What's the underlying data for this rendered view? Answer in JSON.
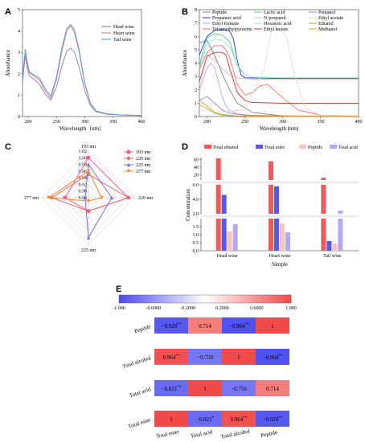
{
  "panels": {
    "A": {
      "letter": "A",
      "chart_data": {
        "type": "line",
        "xlabel": "Wavelength（nm）",
        "ylabel": "Absorbance",
        "xlim": [
          190,
          400
        ],
        "ylim": [
          0,
          5
        ],
        "xticks": [
          "200",
          "250",
          "300",
          "350",
          "400"
        ],
        "yticks": [
          "0",
          "1",
          "2",
          "3",
          "4",
          "5"
        ],
        "legend_position": "top-right",
        "series": [
          {
            "name": "Head wine",
            "color": "#9a82b8",
            "x": [
              190,
              195,
              198,
              202,
              210,
              220,
              230,
              240,
              250,
              260,
              268,
              275,
              282,
              290,
              300,
              310,
              320,
              340,
              360,
              380,
              400
            ],
            "y": [
              1.6,
              2.85,
              2.3,
              1.9,
              1.75,
              1.5,
              1.05,
              0.75,
              1.4,
              2.4,
              3.05,
              3.2,
              3.0,
              2.3,
              1.2,
              0.5,
              0.22,
              0.1,
              0.08,
              0.06,
              0.05
            ]
          },
          {
            "name": "Heart wine",
            "color": "#e0868a",
            "x": [
              190,
              195,
              198,
              202,
              210,
              220,
              230,
              240,
              250,
              260,
              268,
              275,
              282,
              290,
              300,
              310,
              320,
              340,
              360,
              380,
              400
            ],
            "y": [
              1.75,
              3.05,
              2.5,
              2.05,
              1.9,
              1.7,
              1.2,
              0.85,
              1.75,
              3.1,
              4.0,
              4.25,
              3.9,
              3.0,
              1.5,
              0.6,
              0.25,
              0.12,
              0.08,
              0.06,
              0.05
            ]
          },
          {
            "name": "Tail wine",
            "color": "#5f9ed1",
            "x": [
              190,
              195,
              198,
              202,
              210,
              220,
              230,
              240,
              250,
              260,
              268,
              275,
              282,
              290,
              300,
              310,
              320,
              340,
              360,
              380,
              400
            ],
            "y": [
              1.8,
              3.15,
              2.6,
              2.1,
              1.95,
              1.8,
              1.3,
              0.95,
              1.85,
              3.25,
              4.1,
              4.3,
              4.05,
              3.1,
              1.55,
              0.62,
              0.26,
              0.12,
              0.08,
              0.06,
              0.05
            ]
          }
        ]
      }
    },
    "B": {
      "letter": "B",
      "chart_data": {
        "type": "line",
        "xlabel": "Wavelength (nm)",
        "ylabel": "Absorbance",
        "xlim": [
          190,
          400
        ],
        "ylim": [
          0,
          8
        ],
        "xticks": [
          "200",
          "250",
          "300",
          "350",
          "400"
        ],
        "yticks": [
          "0",
          "1",
          "2",
          "3",
          "4",
          "5",
          "6",
          "7",
          "8"
        ],
        "legend_position": "top",
        "series": [
          {
            "name": "Peptide",
            "color": "#7f7f7f",
            "x": [
              190,
              200,
              210,
              220,
              230,
              240,
              260,
              300,
              350,
              400
            ],
            "y": [
              5.5,
              5.7,
              4.6,
              3.2,
              2.0,
              1.0,
              0.3,
              0.05,
              0.02,
              0.02
            ]
          },
          {
            "name": "Propanoic acid",
            "color": "#1f2fd6",
            "x": [
              190,
              200,
              210,
              220,
              230,
              235,
              240,
              245,
              250,
              300,
              350,
              400
            ],
            "y": [
              4.6,
              6.0,
              6.45,
              6.5,
              6.4,
              5.8,
              4.2,
              3.1,
              2.9,
              2.85,
              2.85,
              2.85
            ]
          },
          {
            "name": "Ethyl formate",
            "color": "#c9a0dc",
            "x": [
              190,
              200,
              205,
              210,
              215,
              220,
              225,
              230,
              240,
              260,
              300,
              400
            ],
            "y": [
              2.0,
              3.6,
              4.0,
              3.7,
              2.6,
              1.5,
              0.8,
              0.45,
              0.2,
              0.08,
              0.04,
              0.03
            ]
          },
          {
            "name": "Tetramethylpyrazine",
            "color": "#ff6b6b",
            "x": [
              190,
              200,
              210,
              220,
              225,
              230,
              240,
              250,
              260,
              270,
              280,
              300,
              320,
              350,
              400
            ],
            "y": [
              3.5,
              4.8,
              5.3,
              5.3,
              5.0,
              4.4,
              2.4,
              1.6,
              1.8,
              2.3,
              2.4,
              1.4,
              0.5,
              0.1,
              0.05
            ]
          },
          {
            "name": "Lactic acid",
            "color": "#4cd07a",
            "x": [
              190,
              200,
              210,
              220,
              230,
              240,
              250,
              260,
              300,
              400
            ],
            "y": [
              3.8,
              5.9,
              6.2,
              6.1,
              5.6,
              3.8,
              3.1,
              2.95,
              2.9,
              2.9
            ]
          },
          {
            "name": "N-propanol",
            "color": "#f2b3b3",
            "x": [
              190,
              200,
              210,
              220,
              230,
              240,
              260,
              300,
              400
            ],
            "y": [
              4.2,
              4.6,
              4.2,
              3.6,
              3.1,
              2.9,
              2.8,
              2.8,
              2.8
            ]
          },
          {
            "name": "Hexanoic acid",
            "color": "#8fe3e3",
            "x": [
              190,
              200,
              210,
              220,
              230,
              240,
              250,
              260,
              300,
              400
            ],
            "y": [
              3.6,
              5.4,
              5.8,
              5.7,
              5.2,
              3.9,
              3.1,
              2.95,
              2.9,
              2.9
            ]
          },
          {
            "name": "Ethyl lactate",
            "color": "#d62728",
            "x": [
              190,
              200,
              210,
              220,
              225,
              230,
              240,
              250,
              260,
              300,
              400
            ],
            "y": [
              2.6,
              4.5,
              4.8,
              4.8,
              4.6,
              3.6,
              1.8,
              1.2,
              1.05,
              1.0,
              1.0
            ]
          },
          {
            "name": "Pentanol",
            "color": "#a07de0",
            "x": [
              190,
              200,
              210,
              220,
              230,
              250,
              300,
              400
            ],
            "y": [
              1.2,
              1.5,
              1.0,
              0.5,
              0.25,
              0.1,
              0.05,
              0.03
            ]
          },
          {
            "name": "Ethyl acetate",
            "color": "#dedede",
            "x": [
              190,
              200,
              210,
              250,
              275,
              285,
              295,
              305,
              315,
              330,
              350,
              400
            ],
            "y": [
              0.4,
              0.5,
              0.3,
              0.5,
              3.5,
              6.4,
              6.6,
              6.0,
              3.2,
              0.6,
              0.1,
              0.05
            ]
          },
          {
            "name": "Ethanol",
            "color": "#9bbb2e",
            "x": [
              190,
              200,
              210,
              220,
              240,
              300,
              400
            ],
            "y": [
              1.2,
              0.8,
              0.3,
              0.15,
              0.05,
              0.02,
              0.02
            ]
          },
          {
            "name": "Methanol",
            "color": "#e89a2e",
            "x": [
              190,
              200,
              210,
              220,
              240,
              300,
              400
            ],
            "y": [
              0.9,
              0.6,
              0.25,
              0.1,
              0.05,
              0.02,
              0.02
            ]
          }
        ]
      }
    },
    "C": {
      "letter": "C",
      "chart_data": {
        "type": "radar",
        "axes": [
          "193 nm",
          "220 nm",
          "225 nm",
          "277 nm"
        ],
        "rticks": [
          "0.88",
          "0.90",
          "0.92",
          "0.94",
          "0.96",
          "0.98",
          "1.00",
          "1.02"
        ],
        "rlim": [
          0.88,
          1.02
        ],
        "legend_position": "right",
        "series": [
          {
            "name": "193 nm",
            "color": "#ff5a87",
            "marker": "square",
            "values": [
              1.0,
              1.0,
              0.92,
              0.95
            ]
          },
          {
            "name": "220 nm",
            "color": "#f06a6a",
            "marker": "circle",
            "values": [
              0.95,
              1.0,
              0.92,
              0.99
            ]
          },
          {
            "name": "225 nm",
            "color": "#7b6be8",
            "marker": "triangle",
            "values": [
              0.98,
              0.95,
              1.0,
              0.89
            ]
          },
          {
            "name": "277 nm",
            "color": "#f28c28",
            "marker": "triangle-down",
            "values": [
              0.96,
              0.92,
              0.89,
              1.0
            ]
          }
        ]
      }
    },
    "D": {
      "letter": "D",
      "chart_data": {
        "type": "bar",
        "xlabel": "Simple",
        "ylabel": "Concentration",
        "categories": [
          "Head wine",
          "Heart wine",
          "Tail wine"
        ],
        "legend_position": "top",
        "segments": [
          {
            "range": [
              0,
              2.0
            ],
            "ticks": [
              "0.0",
              "0.5",
              "1.0",
              "1.5"
            ]
          },
          {
            "range": [
              2.0,
              6.0
            ],
            "ticks": [
              "2.0",
              "4.0",
              "6.0"
            ]
          },
          {
            "range": [
              6.0,
              65
            ],
            "ticks": [
              "20",
              "40",
              "60"
            ]
          }
        ],
        "series": [
          {
            "name": "Total ethanol",
            "color": "#f05a5a",
            "values": [
              63,
              55,
              12
            ]
          },
          {
            "name": "Total ester",
            "color": "#5b57e8",
            "values": [
              4.6,
              5.8,
              0.6
            ]
          },
          {
            "name": "Peptide",
            "color": "#f7c4c4",
            "values": [
              1.2,
              1.7,
              0.45
            ]
          },
          {
            "name": "Total acid",
            "color": "#b0aaf2",
            "values": [
              1.65,
              1.15,
              2.45
            ]
          }
        ]
      }
    },
    "E": {
      "letter": "E",
      "chart_data": {
        "type": "heatmap",
        "colorbar_ticks": [
          "-1.000",
          "-0.6000",
          "-0.2000",
          "0.2000",
          "0.6000",
          "1.000"
        ],
        "clim": [
          -1,
          1
        ],
        "color_low": "#4a4af0",
        "color_mid": "#ffffff",
        "color_high": "#f04a4a",
        "row_labels": [
          "Peptide",
          "Total  alcohol",
          "Total acid",
          "Total ester"
        ],
        "col_labels": [
          "Total ester",
          "Total acid",
          "Total alcohol",
          "Peptide"
        ],
        "values": [
          [
            -0.929,
            0.714,
            -0.964,
            1
          ],
          [
            0.964,
            -0.75,
            1,
            -0.964
          ],
          [
            -0.821,
            1,
            -0.75,
            0.714
          ],
          [
            1,
            -0.821,
            0.964,
            -0.929
          ]
        ],
        "cell_text": [
          [
            "−0.929",
            "0.714",
            "−0.964",
            "1"
          ],
          [
            "0.964",
            "−0.750",
            "1",
            "−0.964"
          ],
          [
            "−0.821",
            "1",
            "−0.750",
            "0.714"
          ],
          [
            "1",
            "−0.821",
            "0.964",
            "−0.929"
          ]
        ],
        "significance": [
          [
            "**",
            "",
            "**",
            ""
          ],
          [
            "**",
            "",
            "",
            "**"
          ],
          [
            "**",
            "",
            "",
            ""
          ],
          [
            "",
            "*",
            "**",
            "**"
          ]
        ]
      }
    }
  }
}
